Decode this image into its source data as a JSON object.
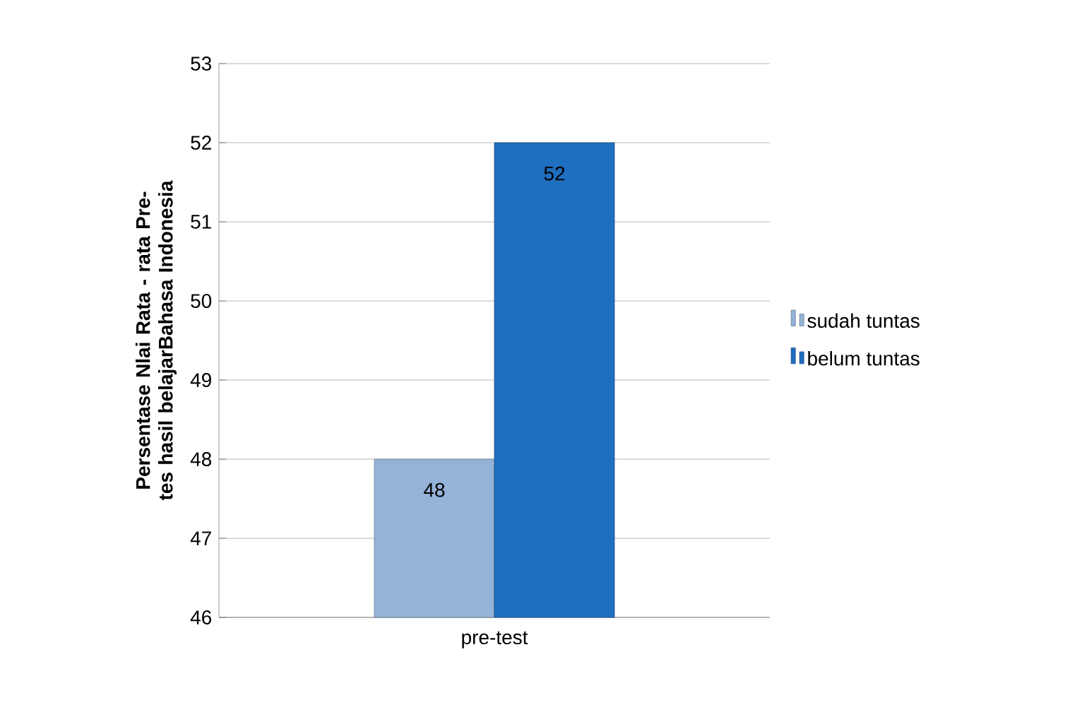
{
  "chart_data": {
    "type": "bar",
    "ylabel": "Persentase Nlai Rata - rata Pre-tes hasil belajarBahasa Indonesia",
    "categories": [
      "pre-test"
    ],
    "series": [
      {
        "name": "sudah tuntas",
        "color": "#95b3d7",
        "values": [
          48
        ]
      },
      {
        "name": "belum tuntas",
        "color": "#1f6fc0",
        "values": [
          52
        ]
      }
    ],
    "ylim": [
      46,
      53
    ],
    "yticks": [
      46,
      47,
      48,
      49,
      50,
      51,
      52,
      53
    ],
    "grid": "y",
    "legend": "right",
    "data_labels": true
  }
}
